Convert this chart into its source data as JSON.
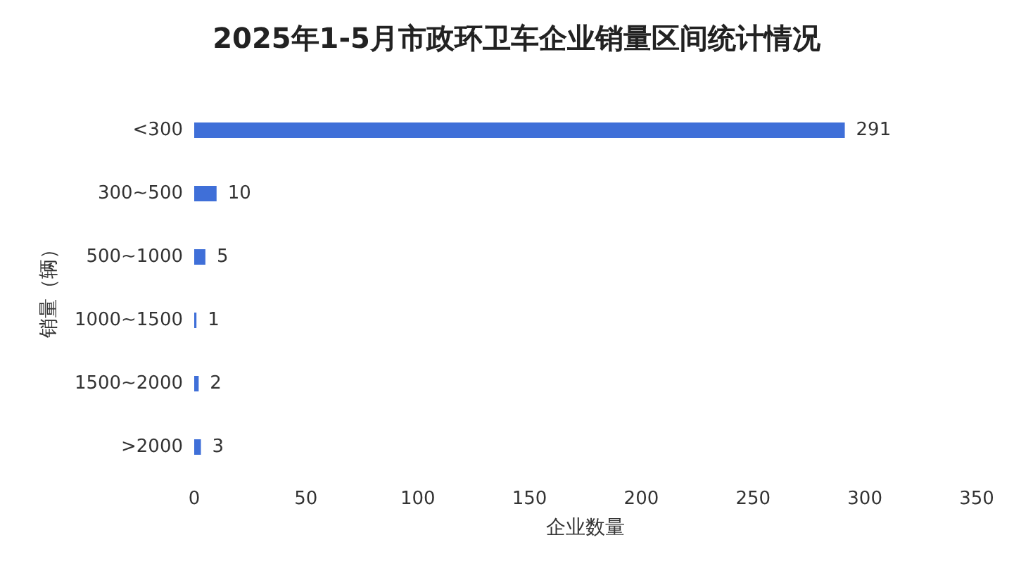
{
  "chart_data": {
    "type": "bar",
    "orientation": "horizontal",
    "title": "2025年1-5月市政环卫车企业销量区间统计情况",
    "xlabel": "企业数量",
    "ylabel": "销量（辆）",
    "categories": [
      "<300",
      "300~500",
      "500~1000",
      "1000~1500",
      "1500~2000",
      ">2000"
    ],
    "values": [
      291,
      10,
      5,
      1,
      2,
      3
    ],
    "color": "#3f6fd8",
    "xlim": [
      0,
      350
    ],
    "xticks": [
      0,
      50,
      100,
      150,
      200,
      250,
      300,
      350
    ],
    "grid": false,
    "data_labels": true
  }
}
